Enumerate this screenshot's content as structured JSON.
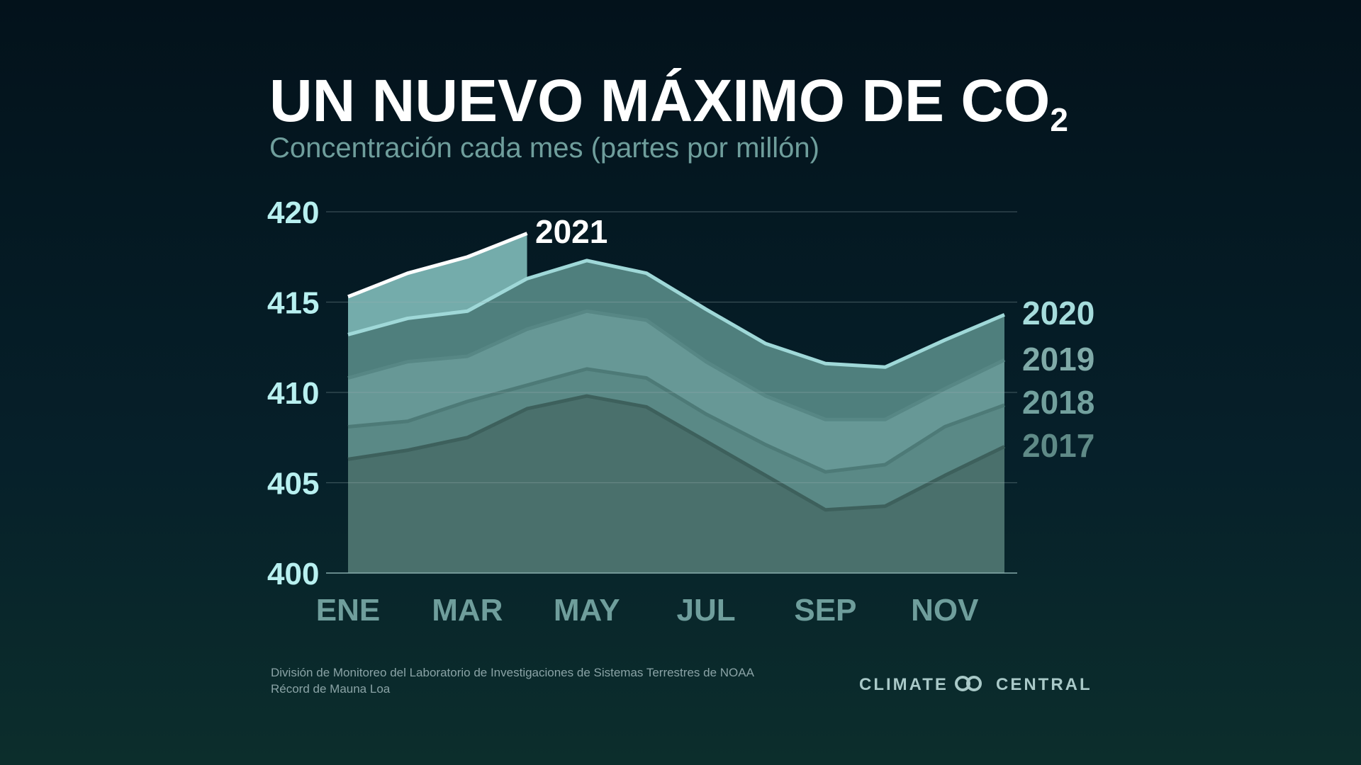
{
  "chart_data": {
    "type": "area",
    "title": "UN NUEVO MÁXIMO DE CO",
    "title_subscript": "2",
    "subtitle": "Concentración cada mes (partes por millón)",
    "categories": [
      "ENE",
      null,
      "MAR",
      null,
      "MAY",
      null,
      "JUL",
      null,
      "SEP",
      null,
      "NOV",
      null
    ],
    "ylim": [
      400,
      420
    ],
    "yticks": [
      400,
      405,
      410,
      415,
      420
    ],
    "grid": true,
    "series": [
      {
        "name": "2021",
        "color": "#74acab",
        "line_color": "#ffffff",
        "values": [
          415.3,
          416.6,
          417.5,
          418.8,
          null,
          null,
          null,
          null,
          null,
          null,
          null,
          null
        ]
      },
      {
        "name": "2020",
        "color": "#4f7f7d",
        "line_color": "#9fd8d8",
        "values": [
          413.2,
          414.1,
          414.5,
          416.3,
          417.3,
          416.6,
          414.6,
          412.7,
          411.6,
          411.4,
          412.9,
          414.3
        ]
      },
      {
        "name": "2019",
        "color": "#679896",
        "line_color": "#578785",
        "values": [
          410.8,
          411.7,
          412.0,
          413.5,
          414.5,
          414.0,
          411.7,
          409.8,
          408.5,
          408.5,
          410.2,
          411.8
        ]
      },
      {
        "name": "2018",
        "color": "#5a8986",
        "line_color": "#4d7a77",
        "values": [
          408.1,
          408.4,
          409.5,
          410.4,
          411.3,
          410.8,
          408.8,
          407.1,
          405.6,
          406.0,
          408.1,
          409.3
        ]
      },
      {
        "name": "2017",
        "color": "#4a706c",
        "line_color": "#3d605c",
        "values": [
          406.3,
          406.8,
          407.5,
          409.1,
          409.8,
          409.2,
          407.3,
          405.4,
          403.5,
          403.7,
          405.4,
          407.0
        ]
      }
    ],
    "label_colors": [
      "#ffffff",
      "#a6dcdc",
      "#80aaa8",
      "#72a09d",
      "#5f8a87"
    ],
    "source": [
      "División de Monitoreo del Laboratorio de Investigaciones de Sistemas Terrestres de NOAA",
      "Récord de Mauna Loa"
    ],
    "logo": [
      "CLIMATE",
      "CENTRAL"
    ]
  }
}
